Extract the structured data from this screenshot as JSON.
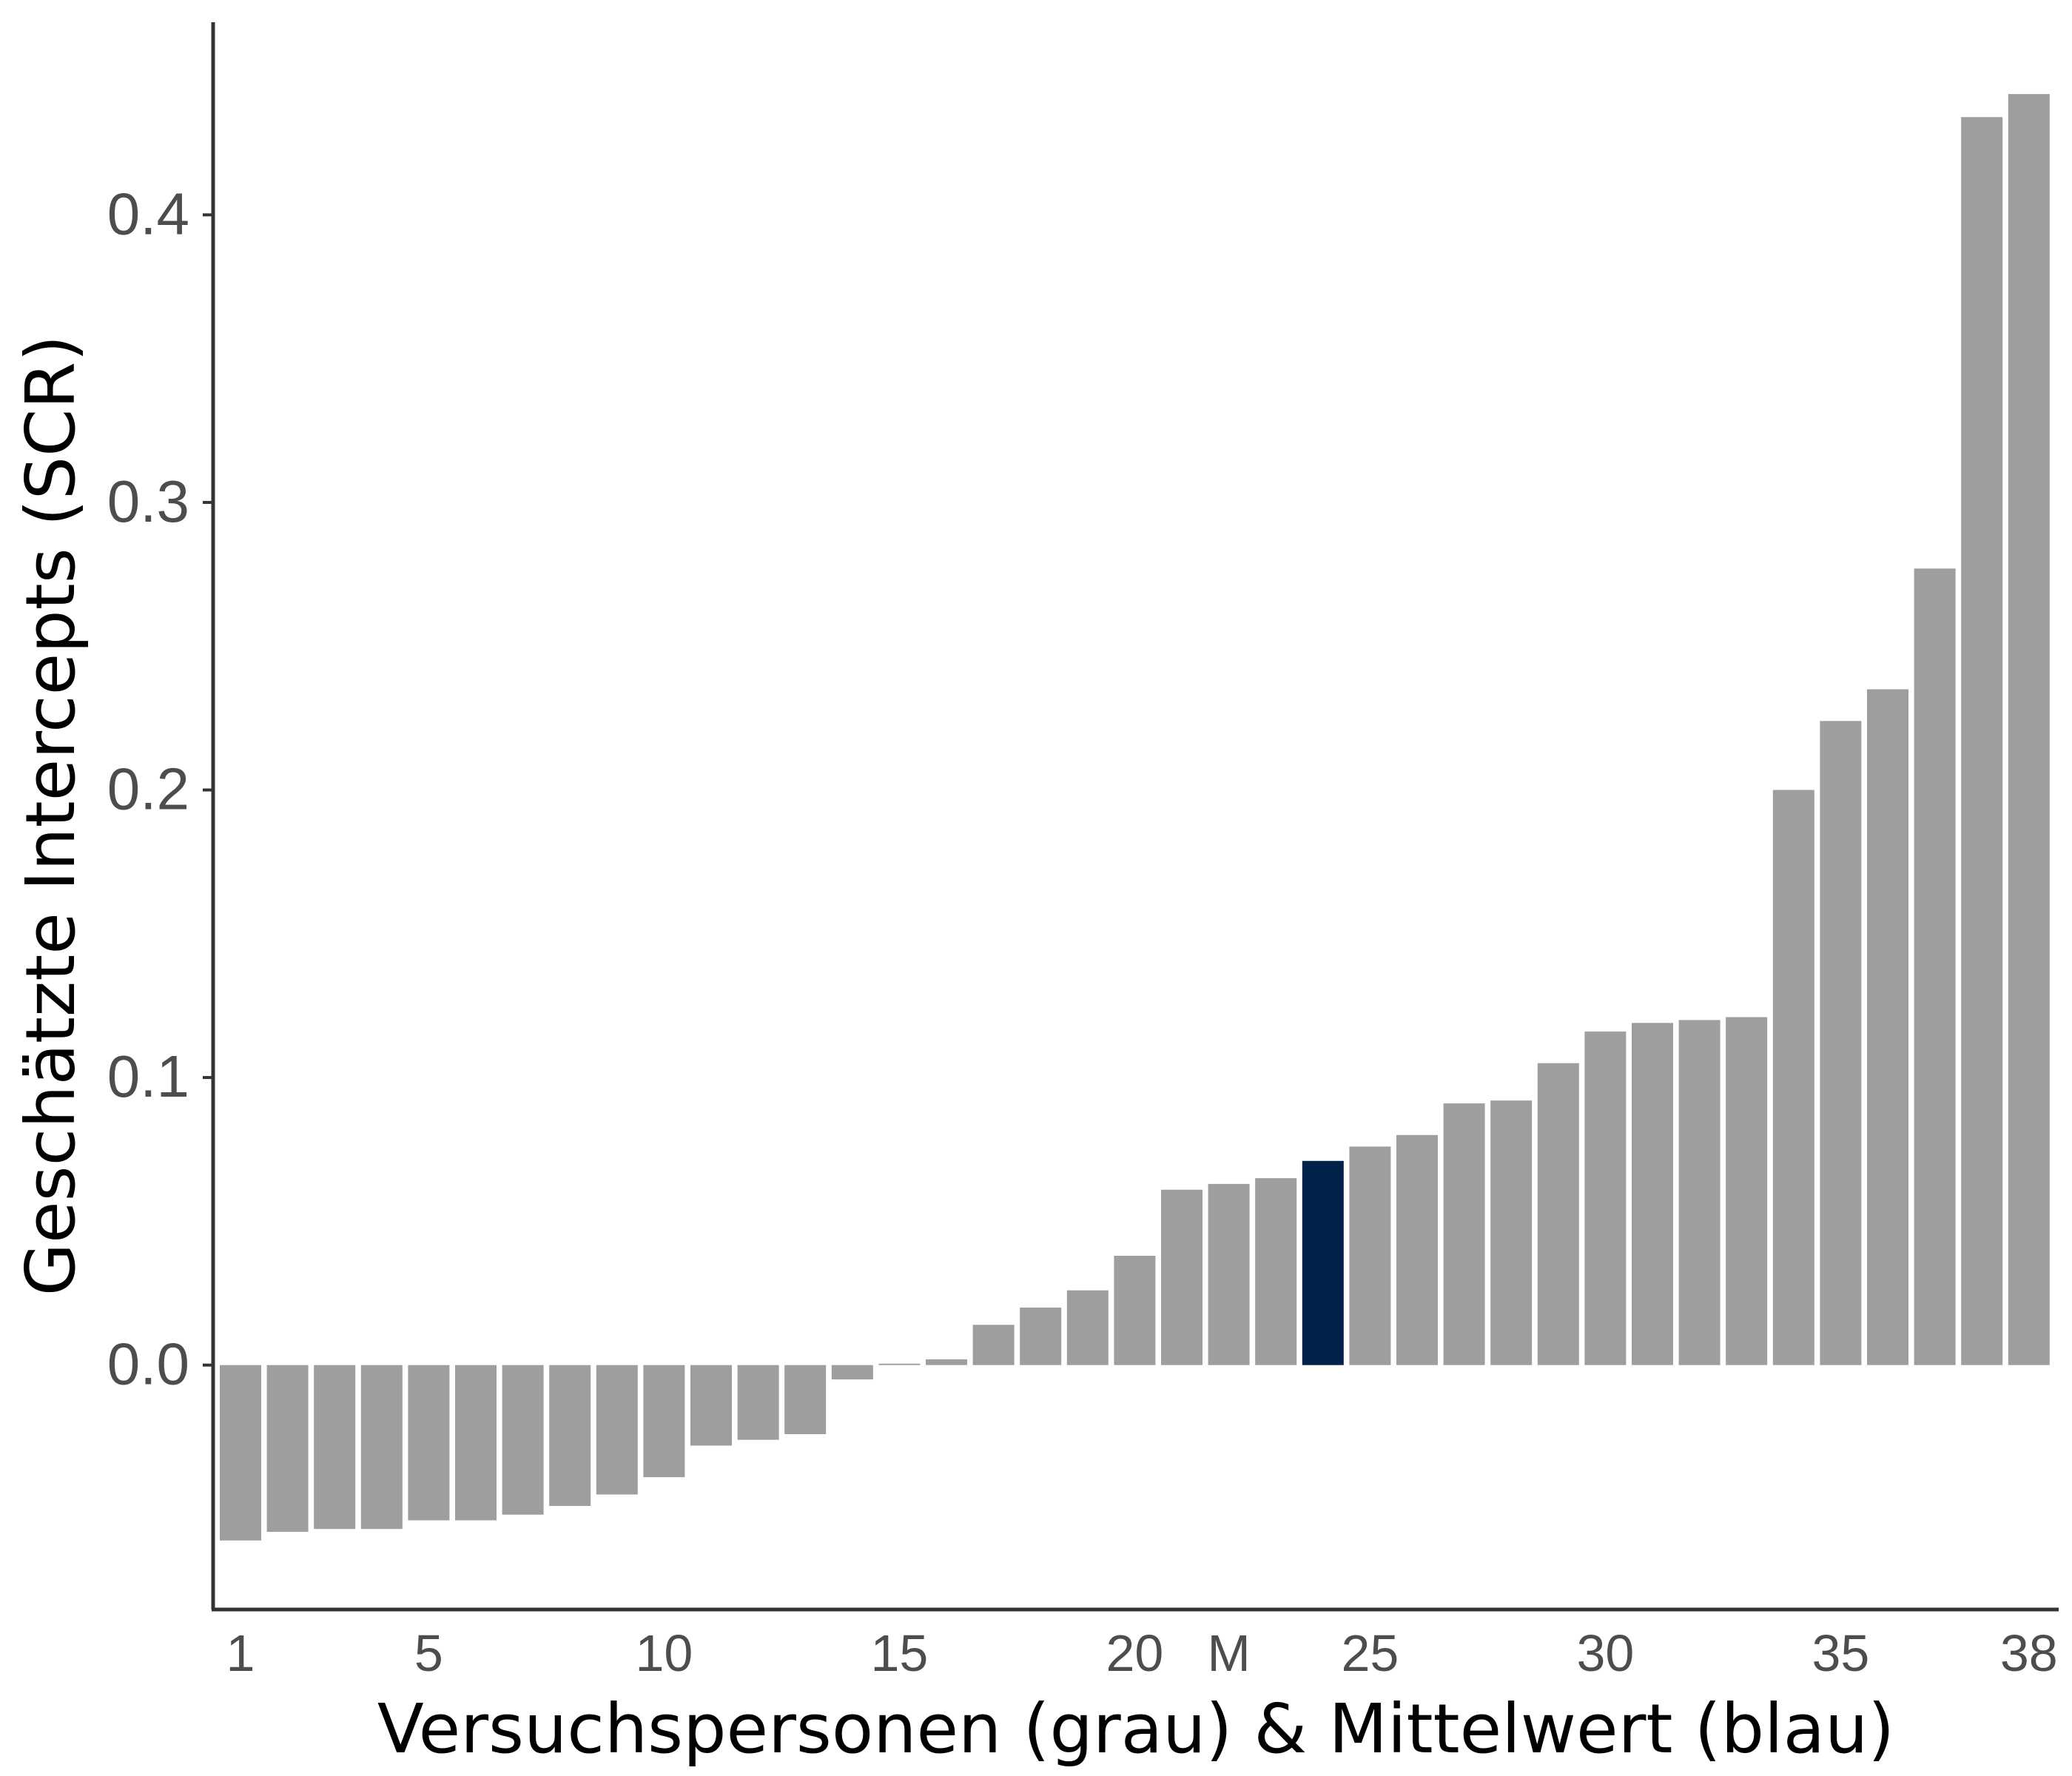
{
  "chart_data": {
    "type": "bar",
    "title": "",
    "xlabel": "Versuchspersonen (grau) & Mittelwert (blau)",
    "ylabel": "Geschätzte Intercepts (SCR)",
    "ylim": [
      -0.085,
      0.467
    ],
    "yticks": [
      "0.0",
      "0.1",
      "0.2",
      "0.3",
      "0.4"
    ],
    "ytick_values": [
      0.0,
      0.1,
      0.2,
      0.3,
      0.4
    ],
    "xtick_labels": [
      {
        "index": 1,
        "label": "1"
      },
      {
        "index": 5,
        "label": "5"
      },
      {
        "index": 10,
        "label": "10"
      },
      {
        "index": 15,
        "label": "15"
      },
      {
        "index": 20,
        "label": "20"
      },
      {
        "index": 22,
        "label": "M"
      },
      {
        "index": 25,
        "label": "25"
      },
      {
        "index": 30,
        "label": "30"
      },
      {
        "index": 35,
        "label": "35"
      },
      {
        "index": 39,
        "label": "38"
      }
    ],
    "colors": {
      "participant": "#9e9e9e",
      "mean": "#03224a",
      "axis": "#333333"
    },
    "grid": false,
    "series": [
      {
        "values": [
          -0.061,
          -0.058,
          -0.057,
          -0.057,
          -0.054,
          -0.054,
          -0.052,
          -0.049,
          -0.045,
          -0.039,
          -0.028,
          -0.026,
          -0.024,
          -0.005,
          0.0005,
          0.002,
          0.014,
          0.02,
          0.026,
          0.038,
          0.061,
          0.063,
          0.065,
          0.071,
          0.076,
          0.08,
          0.091,
          0.092,
          0.105,
          0.116,
          0.119,
          0.12,
          0.121,
          0.2,
          0.224,
          0.235,
          0.277,
          0.434,
          0.442
        ],
        "highlight_index": 23
      }
    ]
  }
}
